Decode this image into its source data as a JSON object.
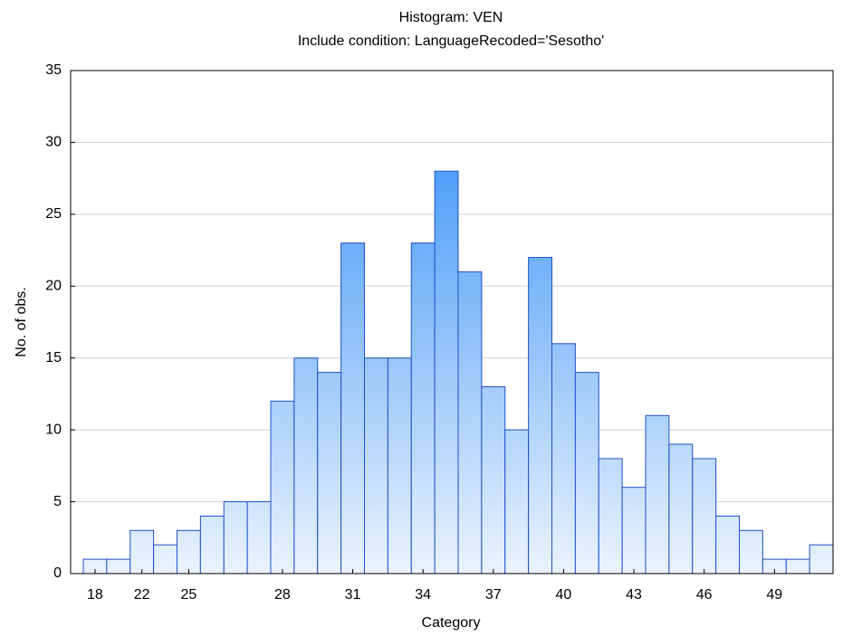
{
  "chart_data": {
    "type": "bar",
    "title": "Histogram: VEN",
    "subtitle": "Include condition: LanguageRecoded='Sesotho'",
    "x_label": "Category",
    "y_label": "No. of obs.",
    "categories": [
      "18",
      null,
      "22",
      null,
      "25",
      null,
      null,
      null,
      "28",
      null,
      null,
      "31",
      null,
      null,
      "34",
      null,
      null,
      "37",
      null,
      null,
      "40",
      null,
      null,
      "43",
      null,
      null,
      "46",
      null,
      null,
      "49",
      null,
      null
    ],
    "values": [
      1,
      1,
      3,
      2,
      3,
      4,
      5,
      5,
      12,
      15,
      14,
      23,
      15,
      15,
      23,
      28,
      21,
      13,
      10,
      22,
      16,
      14,
      8,
      6,
      11,
      9,
      8,
      4,
      3,
      1,
      1,
      2
    ],
    "color": "#2a8af6",
    "ylim": [
      0,
      35
    ],
    "yticks": [
      0,
      5,
      10,
      15,
      20,
      25,
      30,
      35
    ],
    "grid": true
  }
}
